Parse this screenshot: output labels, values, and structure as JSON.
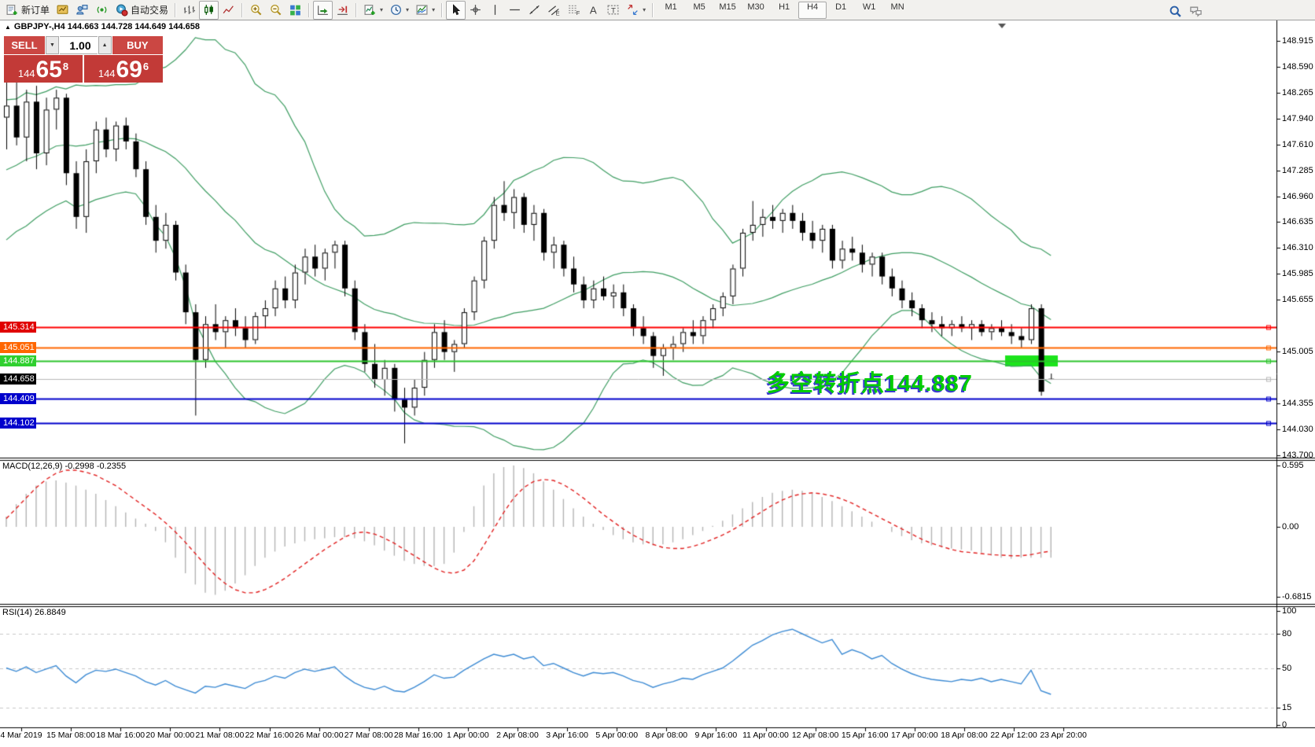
{
  "ui": {
    "dropdown_arrow": "▾",
    "spinner_up": "▲",
    "spinner_down": "▼",
    "collapse_arrow": "▲"
  },
  "toolbar": {
    "items": [
      {
        "name": "new-order",
        "label": "新订单"
      },
      {
        "name": "market-watch"
      },
      {
        "name": "data-window"
      },
      {
        "name": "signals"
      },
      {
        "name": "auto-trading",
        "label": "自动交易"
      },
      {
        "sep": true
      },
      {
        "name": "bar-chart"
      },
      {
        "name": "candlestick-chart",
        "pressed": true
      },
      {
        "name": "line-chart"
      },
      {
        "sep": true
      },
      {
        "name": "zoom-in"
      },
      {
        "name": "zoom-out"
      },
      {
        "name": "tile-windows"
      },
      {
        "sep": true
      },
      {
        "name": "auto-scroll",
        "pressed": true
      },
      {
        "name": "chart-shift"
      },
      {
        "sep": true
      },
      {
        "name": "indicators",
        "dropdown": true
      },
      {
        "name": "periods",
        "dropdown": true
      },
      {
        "name": "templates",
        "dropdown": true
      },
      {
        "sep": true
      },
      {
        "name": "cursor",
        "pressed": true
      },
      {
        "name": "crosshair"
      },
      {
        "name": "vertical-line"
      },
      {
        "name": "horizontal-line"
      },
      {
        "name": "trendline"
      },
      {
        "name": "equidistant-channel"
      },
      {
        "name": "fibonacci"
      },
      {
        "name": "text"
      },
      {
        "name": "text-label"
      },
      {
        "name": "arrows",
        "dropdown": true
      },
      {
        "sep": true
      }
    ],
    "timeframes": [
      {
        "label": "M1"
      },
      {
        "label": "M5"
      },
      {
        "label": "M15"
      },
      {
        "label": "M30"
      },
      {
        "label": "H1"
      },
      {
        "label": "H4",
        "active": true
      },
      {
        "label": "D1"
      },
      {
        "label": "W1"
      },
      {
        "label": "MN"
      }
    ],
    "right_icons": [
      {
        "name": "search"
      },
      {
        "name": "chat"
      }
    ]
  },
  "trade_panel": {
    "sell_label": "SELL",
    "buy_label": "BUY",
    "volume": "1.00",
    "sell_prefix": "144",
    "sell_big": "65",
    "sell_sup": "8",
    "buy_prefix": "144",
    "buy_big": "69",
    "buy_sup": "6"
  },
  "chart": {
    "header_line": "GBPJPY-,H4 144.663 144.728 144.649 144.658",
    "annotation": {
      "text": "多空转折点144.887",
      "color": "#00cc00",
      "shadow_color": "#3b3bd0"
    },
    "hlines": [
      {
        "label": "145.314",
        "price": 145.314,
        "color": "#ff0000",
        "badge": "#e00000",
        "width": 2
      },
      {
        "label": "145.051",
        "price": 145.051,
        "color": "#ff6600",
        "badge": "#ff6600",
        "width": 2
      },
      {
        "label": "144.887",
        "price": 144.887,
        "color": "#2bc42b",
        "badge": "#2fd02f",
        "width": 2
      },
      {
        "label": "144.658",
        "price": 144.658,
        "color": "#b8b8b8",
        "badge": "#000000",
        "width": 1
      },
      {
        "label": "144.409",
        "price": 144.409,
        "color": "#0000cc",
        "badge": "#0000cc",
        "width": 2
      },
      {
        "label": "144.102",
        "price": 144.102,
        "color": "#0000cc",
        "badge": "#0000cc",
        "width": 2
      }
    ],
    "highlight_rect": {
      "price": 144.887,
      "color": "#1ce41c"
    },
    "price_ticks": [
      "148.915",
      "148.590",
      "148.265",
      "147.940",
      "147.610",
      "147.285",
      "146.960",
      "146.635",
      "146.310",
      "145.985",
      "145.655",
      "145.005",
      "144.355",
      "144.030",
      "143.700"
    ],
    "macd_label": "MACD(12,26,9) -0.2998 -0.2355",
    "macd_ticks": [
      "0.595",
      "0.00",
      "-0.6815"
    ],
    "rsi_label": "RSI(14) 26.8849",
    "rsi_ticks": [
      "100",
      "80",
      "50",
      "15",
      "0"
    ],
    "time_labels": [
      "4 Mar 2019",
      "15 Mar 08:00",
      "18 Mar 16:00",
      "20 Mar 00:00",
      "21 Mar 08:00",
      "22 Mar 16:00",
      "26 Mar 00:00",
      "27 Mar 08:00",
      "28 Mar 16:00",
      "1 Apr 00:00",
      "2 Apr 08:00",
      "3 Apr 16:00",
      "5 Apr 00:00",
      "8 Apr 08:00",
      "9 Apr 16:00",
      "11 Apr 00:00",
      "12 Apr 08:00",
      "15 Apr 16:00",
      "17 Apr 00:00",
      "18 Apr 08:00",
      "22 Apr 12:00",
      "23 Apr 20:00"
    ]
  },
  "chart_data": [
    {
      "type": "candlestick",
      "symbol": "GBPJPY-",
      "period": "H4",
      "ylim": [
        143.7,
        148.915
      ],
      "bollinger": {
        "period": 20,
        "deviation": 2
      },
      "ohlc": [
        [
          147.95,
          148.4,
          147.55,
          148.1
        ],
        [
          148.1,
          148.45,
          147.6,
          147.7
        ],
        [
          147.7,
          148.3,
          147.4,
          148.15
        ],
        [
          148.15,
          148.35,
          147.3,
          147.5
        ],
        [
          147.5,
          148.2,
          147.35,
          148.05
        ],
        [
          148.05,
          148.3,
          147.8,
          148.2
        ],
        [
          148.2,
          148.25,
          147.1,
          147.25
        ],
        [
          147.25,
          147.4,
          146.55,
          146.7
        ],
        [
          146.7,
          147.55,
          146.5,
          147.4
        ],
        [
          147.4,
          147.9,
          147.25,
          147.8
        ],
        [
          147.8,
          147.95,
          147.45,
          147.55
        ],
        [
          147.55,
          147.9,
          147.4,
          147.85
        ],
        [
          147.85,
          147.95,
          147.55,
          147.65
        ],
        [
          147.65,
          147.75,
          147.2,
          147.3
        ],
        [
          147.3,
          147.4,
          146.6,
          146.7
        ],
        [
          146.7,
          146.85,
          146.25,
          146.4
        ],
        [
          146.4,
          146.75,
          146.3,
          146.6
        ],
        [
          146.6,
          146.65,
          145.9,
          146.0
        ],
        [
          146.0,
          146.1,
          145.35,
          145.5
        ],
        [
          145.5,
          145.6,
          144.2,
          144.9
        ],
        [
          144.9,
          145.45,
          144.8,
          145.35
        ],
        [
          145.35,
          145.6,
          145.15,
          145.25
        ],
        [
          145.25,
          145.45,
          145.05,
          145.4
        ],
        [
          145.4,
          145.55,
          145.2,
          145.3
        ],
        [
          145.3,
          145.45,
          145.05,
          145.15
        ],
        [
          145.15,
          145.5,
          145.1,
          145.45
        ],
        [
          145.45,
          145.65,
          145.3,
          145.55
        ],
        [
          145.55,
          145.9,
          145.45,
          145.8
        ],
        [
          145.8,
          145.95,
          145.55,
          145.65
        ],
        [
          145.65,
          146.1,
          145.55,
          146.0
        ],
        [
          146.0,
          146.3,
          145.85,
          146.2
        ],
        [
          146.2,
          146.35,
          145.95,
          146.05
        ],
        [
          146.05,
          146.3,
          145.9,
          146.25
        ],
        [
          146.25,
          146.4,
          146.05,
          146.35
        ],
        [
          146.35,
          146.4,
          145.7,
          145.8
        ],
        [
          145.8,
          145.9,
          145.15,
          145.25
        ],
        [
          145.25,
          145.35,
          144.75,
          144.85
        ],
        [
          144.85,
          145.1,
          144.55,
          144.65
        ],
        [
          144.65,
          144.9,
          144.45,
          144.8
        ],
        [
          144.8,
          144.85,
          144.25,
          144.4
        ],
        [
          144.4,
          144.55,
          143.85,
          144.3
        ],
        [
          144.3,
          144.65,
          144.2,
          144.55
        ],
        [
          144.55,
          145.0,
          144.45,
          144.9
        ],
        [
          144.9,
          145.35,
          144.8,
          145.25
        ],
        [
          145.25,
          145.4,
          144.9,
          145.0
        ],
        [
          145.0,
          145.15,
          144.75,
          145.1
        ],
        [
          145.1,
          145.55,
          145.05,
          145.5
        ],
        [
          145.5,
          145.95,
          145.4,
          145.9
        ],
        [
          145.9,
          146.45,
          145.8,
          146.4
        ],
        [
          146.4,
          146.95,
          146.3,
          146.85
        ],
        [
          146.85,
          147.15,
          146.65,
          146.75
        ],
        [
          146.75,
          147.05,
          146.55,
          146.95
        ],
        [
          146.95,
          147.0,
          146.5,
          146.6
        ],
        [
          146.6,
          146.85,
          146.4,
          146.75
        ],
        [
          146.75,
          146.8,
          146.15,
          146.25
        ],
        [
          146.25,
          146.45,
          146.05,
          146.35
        ],
        [
          146.35,
          146.4,
          145.95,
          146.05
        ],
        [
          146.05,
          146.2,
          145.75,
          145.85
        ],
        [
          145.85,
          145.95,
          145.55,
          145.65
        ],
        [
          145.65,
          145.9,
          145.55,
          145.8
        ],
        [
          145.8,
          145.95,
          145.65,
          145.7
        ],
        [
          145.7,
          145.85,
          145.55,
          145.75
        ],
        [
          145.75,
          145.85,
          145.45,
          145.55
        ],
        [
          145.55,
          145.6,
          145.2,
          145.3
        ],
        [
          145.3,
          145.45,
          145.1,
          145.2
        ],
        [
          145.2,
          145.25,
          144.8,
          144.95
        ],
        [
          144.95,
          145.1,
          144.7,
          145.05
        ],
        [
          145.05,
          145.2,
          144.9,
          145.1
        ],
        [
          145.1,
          145.3,
          145.0,
          145.25
        ],
        [
          145.25,
          145.4,
          145.1,
          145.2
        ],
        [
          145.2,
          145.45,
          145.1,
          145.4
        ],
        [
          145.4,
          145.6,
          145.3,
          145.55
        ],
        [
          145.55,
          145.75,
          145.45,
          145.7
        ],
        [
          145.7,
          146.1,
          145.6,
          146.05
        ],
        [
          146.05,
          146.55,
          145.95,
          146.5
        ],
        [
          146.5,
          146.9,
          146.4,
          146.6
        ],
        [
          146.6,
          146.8,
          146.45,
          146.7
        ],
        [
          146.7,
          146.85,
          146.55,
          146.65
        ],
        [
          146.65,
          146.8,
          146.5,
          146.75
        ],
        [
          146.75,
          146.85,
          146.55,
          146.65
        ],
        [
          146.65,
          146.75,
          146.4,
          146.5
        ],
        [
          146.5,
          146.65,
          146.3,
          146.4
        ],
        [
          146.4,
          146.6,
          146.25,
          146.55
        ],
        [
          146.55,
          146.6,
          146.05,
          146.15
        ],
        [
          146.15,
          146.4,
          146.05,
          146.3
        ],
        [
          146.3,
          146.45,
          146.15,
          146.25
        ],
        [
          146.25,
          146.35,
          146.0,
          146.1
        ],
        [
          146.1,
          146.25,
          145.95,
          146.2
        ],
        [
          146.2,
          146.25,
          145.85,
          145.95
        ],
        [
          145.95,
          146.05,
          145.7,
          145.8
        ],
        [
          145.8,
          145.9,
          145.55,
          145.65
        ],
        [
          145.65,
          145.75,
          145.45,
          145.55
        ],
        [
          145.55,
          145.6,
          145.3,
          145.4
        ],
        [
          145.4,
          145.5,
          145.25,
          145.35
        ],
        [
          145.35,
          145.45,
          145.2,
          145.3
        ],
        [
          145.3,
          145.4,
          145.2,
          145.35
        ],
        [
          145.35,
          145.45,
          145.25,
          145.3
        ],
        [
          145.3,
          145.4,
          145.15,
          145.35
        ],
        [
          145.35,
          145.4,
          145.2,
          145.25
        ],
        [
          145.25,
          145.35,
          145.15,
          145.3
        ],
        [
          145.3,
          145.4,
          145.2,
          145.25
        ],
        [
          145.25,
          145.35,
          145.1,
          145.2
        ],
        [
          145.2,
          145.3,
          145.05,
          145.15
        ],
        [
          145.15,
          145.6,
          145.1,
          145.55
        ],
        [
          145.55,
          145.6,
          144.45,
          144.5
        ],
        [
          144.663,
          144.728,
          144.649,
          144.658
        ]
      ]
    },
    {
      "type": "bar",
      "name": "MACD(12,26,9)",
      "ylim": [
        -0.6815,
        0.595
      ],
      "current": {
        "macd": -0.2998,
        "signal": -0.2355
      },
      "histogram": [
        0.1,
        0.22,
        0.32,
        0.4,
        0.44,
        0.45,
        0.43,
        0.4,
        0.36,
        0.32,
        0.26,
        0.2,
        0.14,
        0.08,
        0.03,
        -0.04,
        -0.15,
        -0.3,
        -0.45,
        -0.56,
        -0.64,
        -0.66,
        -0.62,
        -0.55,
        -0.47,
        -0.38,
        -0.3,
        -0.24,
        -0.19,
        -0.16,
        -0.14,
        -0.12,
        -0.11,
        -0.1,
        -0.1,
        -0.11,
        -0.14,
        -0.18,
        -0.23,
        -0.28,
        -0.33,
        -0.36,
        -0.38,
        -0.38,
        -0.36,
        -0.25,
        -0.05,
        0.2,
        0.4,
        0.52,
        0.58,
        0.595,
        0.57,
        0.52,
        0.44,
        0.36,
        0.27,
        0.18,
        0.1,
        0.03,
        -0.03,
        -0.08,
        -0.12,
        -0.15,
        -0.17,
        -0.18,
        -0.17,
        -0.15,
        -0.12,
        -0.08,
        -0.04,
        0.01,
        0.06,
        0.12,
        0.18,
        0.24,
        0.29,
        0.33,
        0.35,
        0.36,
        0.35,
        0.33,
        0.29,
        0.25,
        0.2,
        0.15,
        0.1,
        0.05,
        0.0,
        -0.05,
        -0.09,
        -0.13,
        -0.16,
        -0.18,
        -0.2,
        -0.21,
        -0.22,
        -0.23,
        -0.25,
        -0.28,
        -0.3,
        -0.31,
        -0.3,
        -0.3,
        -0.3,
        -0.2998
      ],
      "signal": [
        0.08,
        0.18,
        0.28,
        0.38,
        0.46,
        0.52,
        0.55,
        0.55,
        0.53,
        0.5,
        0.45,
        0.4,
        0.33,
        0.26,
        0.19,
        0.12,
        0.04,
        -0.05,
        -0.15,
        -0.26,
        -0.37,
        -0.47,
        -0.55,
        -0.61,
        -0.64,
        -0.64,
        -0.61,
        -0.56,
        -0.5,
        -0.43,
        -0.36,
        -0.29,
        -0.22,
        -0.16,
        -0.1,
        -0.06,
        -0.05,
        -0.07,
        -0.11,
        -0.16,
        -0.22,
        -0.28,
        -0.34,
        -0.4,
        -0.44,
        -0.45,
        -0.42,
        -0.33,
        -0.18,
        -0.02,
        0.14,
        0.28,
        0.38,
        0.44,
        0.46,
        0.45,
        0.41,
        0.35,
        0.28,
        0.2,
        0.12,
        0.05,
        -0.02,
        -0.08,
        -0.13,
        -0.17,
        -0.2,
        -0.21,
        -0.21,
        -0.19,
        -0.16,
        -0.12,
        -0.08,
        -0.03,
        0.03,
        0.09,
        0.15,
        0.21,
        0.26,
        0.3,
        0.32,
        0.33,
        0.32,
        0.3,
        0.27,
        0.23,
        0.18,
        0.13,
        0.08,
        0.03,
        -0.02,
        -0.07,
        -0.12,
        -0.16,
        -0.19,
        -0.22,
        -0.24,
        -0.25,
        -0.26,
        -0.27,
        -0.275,
        -0.28,
        -0.28,
        -0.27,
        -0.25,
        -0.2355
      ]
    },
    {
      "type": "line",
      "name": "RSI(14)",
      "ylim": [
        0,
        100
      ],
      "levels": [
        15,
        50,
        80
      ],
      "current": 26.8849,
      "values": [
        50,
        47,
        51,
        46,
        49,
        52,
        43,
        37,
        44,
        48,
        47,
        49,
        46,
        43,
        38,
        35,
        39,
        34,
        31,
        28,
        34,
        33,
        36,
        34,
        32,
        37,
        39,
        43,
        41,
        46,
        49,
        47,
        49,
        51,
        43,
        37,
        33,
        31,
        34,
        30,
        29,
        33,
        38,
        44,
        41,
        42,
        48,
        53,
        58,
        62,
        60,
        62,
        58,
        60,
        52,
        54,
        50,
        46,
        43,
        46,
        45,
        46,
        43,
        39,
        37,
        33,
        36,
        38,
        41,
        40,
        44,
        47,
        50,
        56,
        63,
        70,
        74,
        79,
        82,
        84,
        80,
        76,
        72,
        75,
        62,
        66,
        63,
        58,
        61,
        54,
        49,
        45,
        42,
        40,
        39,
        38,
        40,
        39,
        41,
        38,
        40,
        38,
        36,
        48,
        30,
        26.88
      ]
    }
  ]
}
